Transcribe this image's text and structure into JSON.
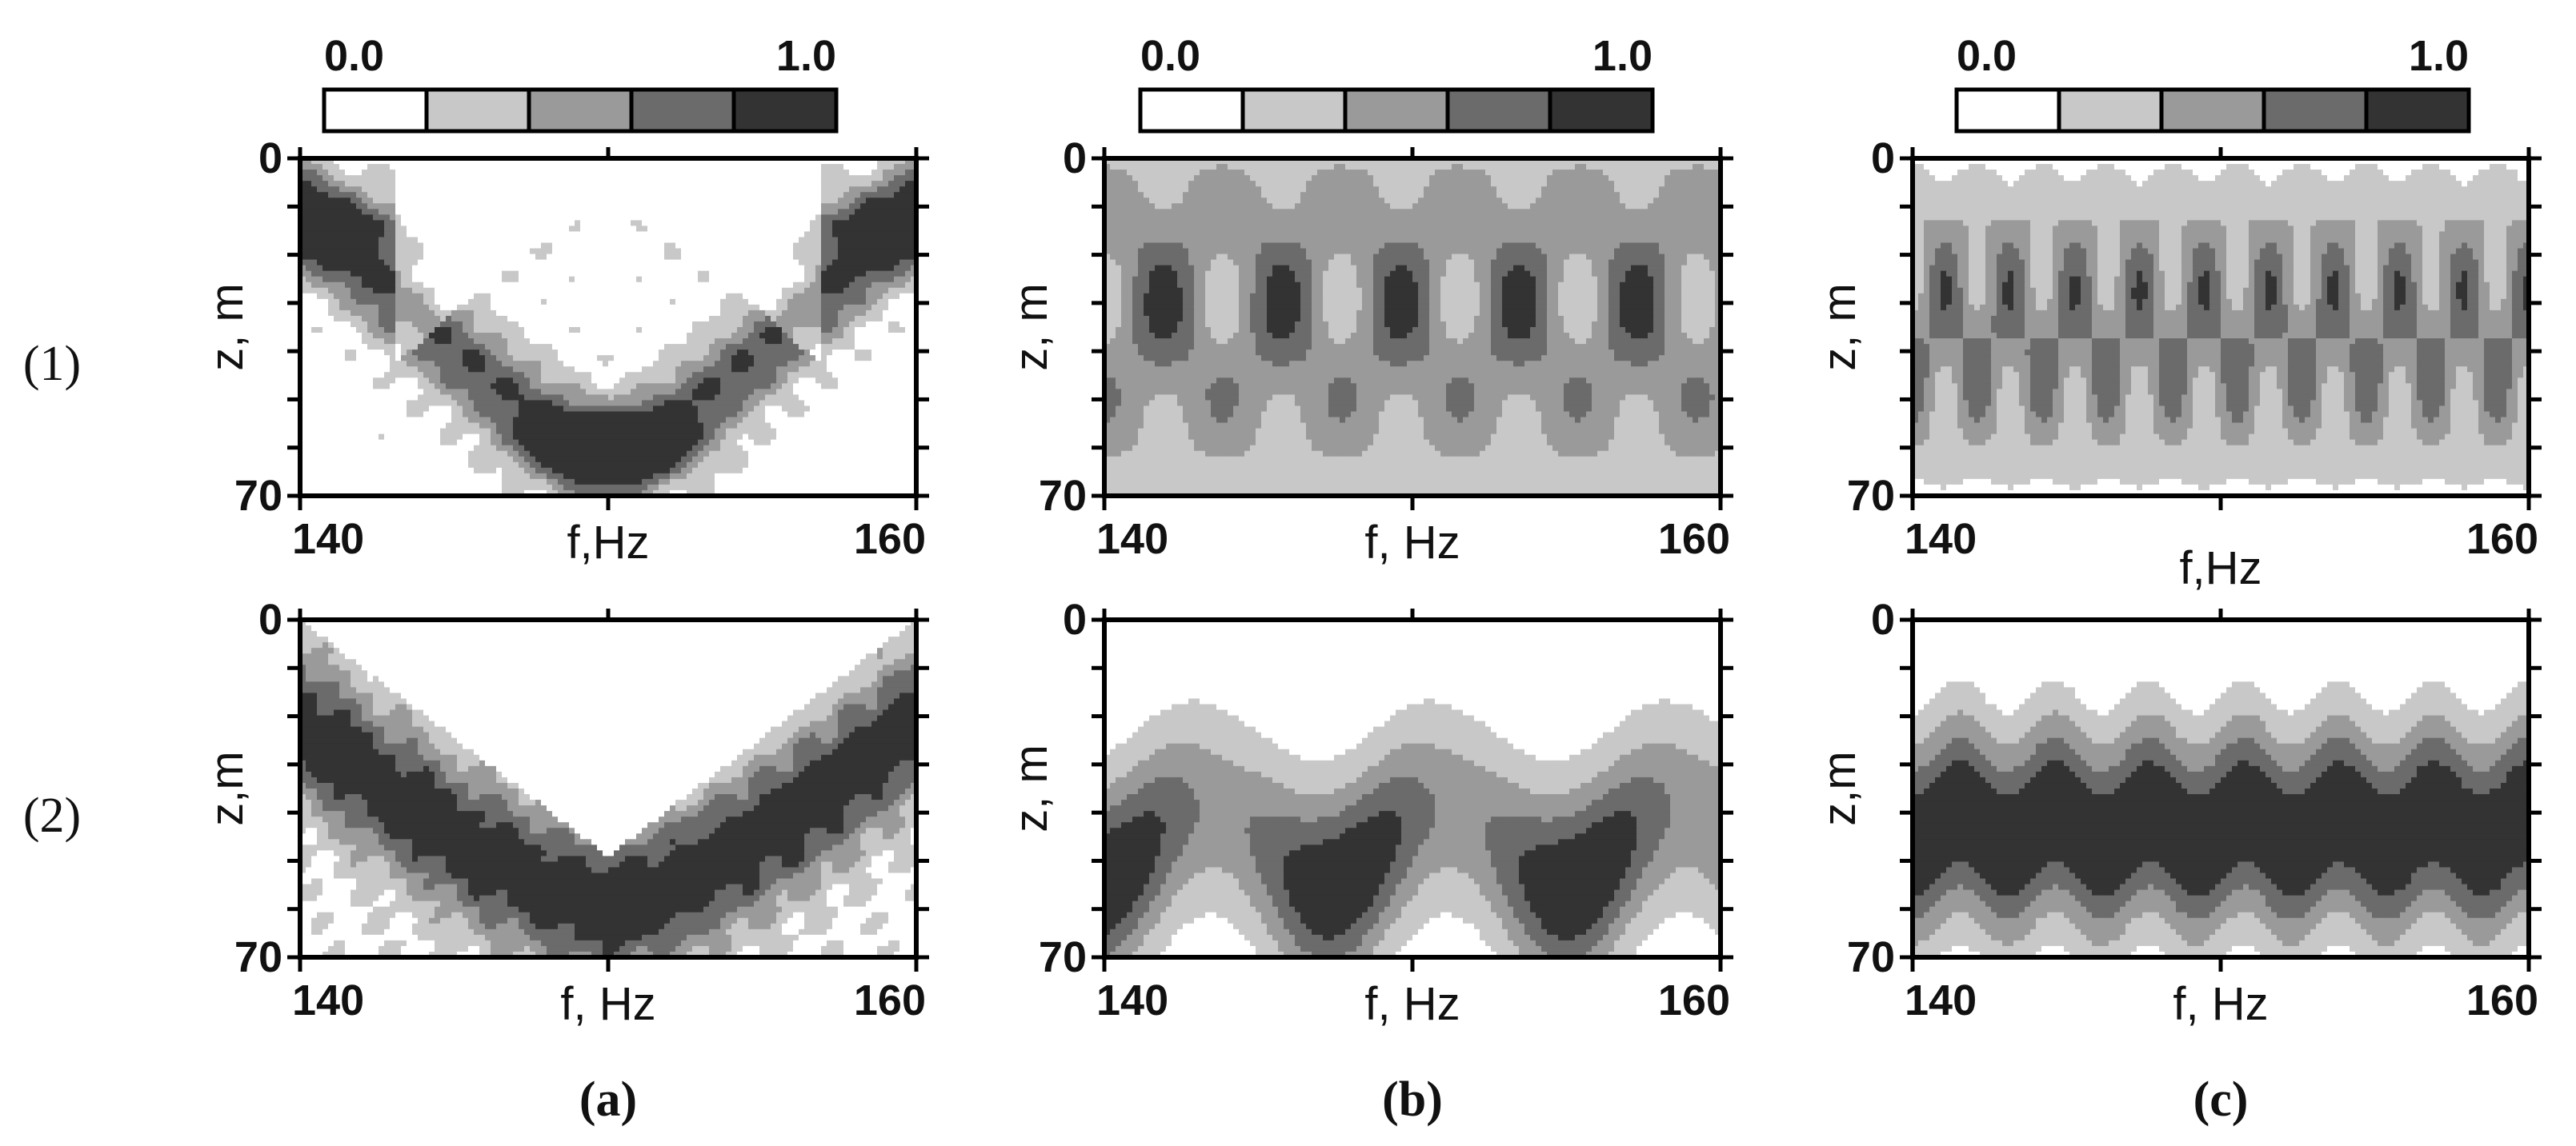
{
  "figure": {
    "row_labels": [
      "(1)",
      "(2)"
    ],
    "column_labels": [
      "(a)",
      "(b)",
      "(c)"
    ],
    "colorbar": {
      "min_label": "0.0",
      "max_label": "1.0",
      "levels": 5,
      "colors": [
        "#ffffff",
        "#c8c8c8",
        "#9a9a9a",
        "#6b6b6b",
        "#333333"
      ]
    },
    "axis_y_ticks": [
      "0",
      "70"
    ],
    "axis_x_ticks": [
      "140",
      "160"
    ]
  },
  "chart_data": [
    {
      "id": "1a",
      "type": "heatmap",
      "xlabel": "f,Hz",
      "ylabel": "z, m",
      "xlim": [
        140,
        160
      ],
      "ylim": [
        0,
        70
      ],
      "zlim": [
        0.0,
        1.0
      ],
      "levels": [
        0.0,
        0.2,
        0.4,
        0.6,
        0.8,
        1.0
      ]
    },
    {
      "id": "1b",
      "type": "heatmap",
      "xlabel": "f, Hz",
      "ylabel": "z, m",
      "xlim": [
        140,
        160
      ],
      "ylim": [
        0,
        70
      ],
      "zlim": [
        0.0,
        1.0
      ],
      "levels": [
        0.0,
        0.2,
        0.4,
        0.6,
        0.8,
        1.0
      ]
    },
    {
      "id": "1c",
      "type": "heatmap",
      "xlabel": "f,Hz",
      "ylabel": "z, m",
      "xlim": [
        140,
        160
      ],
      "ylim": [
        0,
        70
      ],
      "zlim": [
        0.0,
        1.0
      ],
      "levels": [
        0.0,
        0.2,
        0.4,
        0.6,
        0.8,
        1.0
      ]
    },
    {
      "id": "2a",
      "type": "heatmap",
      "xlabel": "f, Hz",
      "ylabel": "z,m",
      "xlim": [
        140,
        160
      ],
      "ylim": [
        0,
        70
      ],
      "zlim": [
        0.0,
        1.0
      ],
      "levels": [
        0.0,
        0.2,
        0.4,
        0.6,
        0.8,
        1.0
      ]
    },
    {
      "id": "2b",
      "type": "heatmap",
      "xlabel": "f, Hz",
      "ylabel": "z, m",
      "xlim": [
        140,
        160
      ],
      "ylim": [
        0,
        70
      ],
      "zlim": [
        0.0,
        1.0
      ],
      "levels": [
        0.0,
        0.2,
        0.4,
        0.6,
        0.8,
        1.0
      ]
    },
    {
      "id": "2c",
      "type": "heatmap",
      "xlabel": "f, Hz",
      "ylabel": "z,m",
      "xlim": [
        140,
        160
      ],
      "ylim": [
        0,
        70
      ],
      "zlim": [
        0.0,
        1.0
      ],
      "levels": [
        0.0,
        0.2,
        0.4,
        0.6,
        0.8,
        1.0
      ]
    }
  ]
}
